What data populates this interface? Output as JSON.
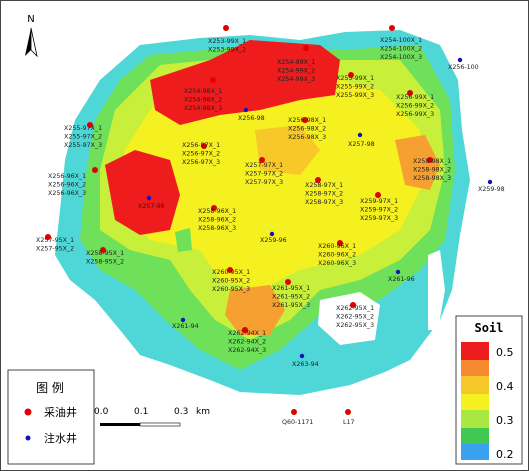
{
  "north": "N",
  "wells": {
    "production": [
      {
        "labels": [
          "X253-99X_1",
          "X253-99X_2"
        ]
      },
      {
        "labels": [
          "X254-100X_1",
          "X254-100X_2",
          "X254-100X_3"
        ]
      },
      {
        "labels": [
          "X254-99X_1",
          "X254-99X_2",
          "X254-99X_3"
        ]
      },
      {
        "labels": [
          "X254-98X_1",
          "X254-98X_2",
          "X254-98X_3"
        ]
      },
      {
        "labels": [
          "X255-99X_1",
          "X255-99X_2",
          "X255-99X_3"
        ]
      },
      {
        "labels": [
          "X256-99X_1",
          "X256-99X_2",
          "X256-99X_3"
        ]
      },
      {
        "labels": [
          "X255-97X_1",
          "X255-97X_2",
          "X255-97X_3"
        ]
      },
      {
        "labels": [
          "X256-98X_1",
          "X256-98X_2",
          "X256-98X_3"
        ]
      },
      {
        "labels": [
          "X256-97X_1",
          "X256-97X_2",
          "X256-97X_3"
        ]
      },
      {
        "labels": [
          "X256-96X_1",
          "X256-96X_2",
          "X256-96X_3"
        ]
      },
      {
        "labels": [
          "X257-97X_1",
          "X257-97X_2",
          "X257-97X_3"
        ]
      },
      {
        "labels": [
          "X258-97X_1",
          "X258-97X_2",
          "X258-97X_3"
        ]
      },
      {
        "labels": [
          "X258-98X_1",
          "X258-98X_2",
          "X258-98X_3"
        ]
      },
      {
        "labels": [
          "X259-97X_1",
          "X259-97X_2",
          "X259-97X_3"
        ]
      },
      {
        "labels": [
          "X258-96X_1",
          "X258-96X_2",
          "X258-96X_3"
        ]
      },
      {
        "labels": [
          "X257-95X_1",
          "X257-95X_2"
        ]
      },
      {
        "labels": [
          "X258-95X_1",
          "X258-95X_2"
        ]
      },
      {
        "labels": [
          "X260-96X_1",
          "X260-96X_2",
          "X260-96X_3"
        ]
      },
      {
        "labels": [
          "X260-95X_1",
          "X260-95X_2",
          "X260-95X_3"
        ]
      },
      {
        "labels": [
          "X261-95X_1",
          "X261-95X_2",
          "X261-95X_3"
        ]
      },
      {
        "labels": [
          "X262-95X_1",
          "X262-95X_2",
          "X262-95X_3"
        ]
      },
      {
        "labels": [
          "X262-94X_1",
          "X262-94X_2",
          "X262-94X_3"
        ]
      },
      {
        "labels": [
          "Q60-1171"
        ]
      },
      {
        "labels": [
          "L17"
        ]
      }
    ],
    "injection": [
      "X256-100",
      "X256-98",
      "X257-98",
      "X259-98",
      "X257-96",
      "X259-96",
      "X261-96",
      "X261-94",
      "X263-94"
    ]
  },
  "colorbar": {
    "title": "Soil",
    "ticks": [
      0.5,
      0.4,
      0.3,
      0.2
    ]
  },
  "scale": {
    "labels": [
      "0.0",
      "0.1",
      "0.3"
    ],
    "unit": "km"
  },
  "legend": {
    "title": "图  例",
    "production": "采油井",
    "injection": "注水井"
  }
}
